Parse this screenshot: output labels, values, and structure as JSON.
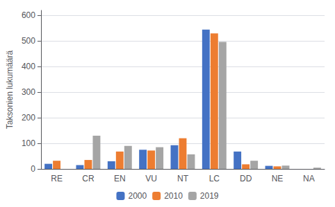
{
  "chart_data": {
    "type": "bar",
    "categories": [
      "RE",
      "CR",
      "EN",
      "VU",
      "NT",
      "LC",
      "DD",
      "NE",
      "NA"
    ],
    "series": [
      {
        "name": "2000",
        "color": "#4472C4",
        "values": [
          20,
          15,
          30,
          75,
          93,
          545,
          68,
          12,
          0
        ]
      },
      {
        "name": "2010",
        "color": "#ED7D31",
        "values": [
          32,
          35,
          68,
          72,
          120,
          530,
          18,
          10,
          0
        ]
      },
      {
        "name": "2019",
        "color": "#A5A5A5",
        "values": [
          0,
          130,
          90,
          85,
          57,
          497,
          32,
          13,
          5
        ]
      }
    ],
    "ylabel": "Taksonien lukumäärä",
    "ylim": [
      0,
      620
    ],
    "yticks": [
      0,
      100,
      200,
      300,
      400,
      500,
      600
    ],
    "grid": true,
    "legend": "bottom"
  }
}
